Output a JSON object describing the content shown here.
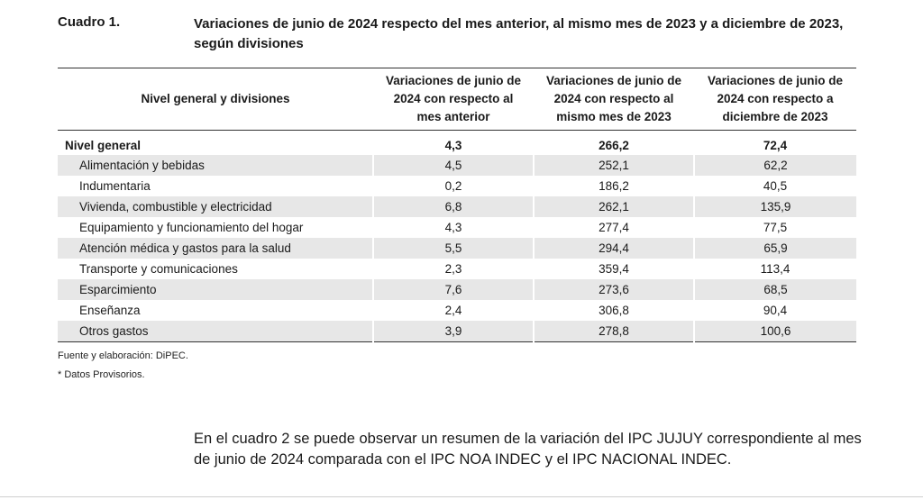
{
  "cuadro": {
    "label": "Cuadro 1.",
    "title": "Variaciones de junio de 2024 respecto del mes anterior, al mismo mes de 2023 y a diciembre de 2023, según divisiones"
  },
  "table": {
    "headers": [
      "Nivel general y divisiones",
      "Variaciones de junio de 2024 con respecto al mes anterior",
      "Variaciones de junio de 2024 con respecto al mismo mes de 2023",
      "Variaciones de junio de 2024 con respecto a diciembre de 2023"
    ],
    "rows": [
      [
        "Nivel general",
        "4,3",
        "266,2",
        "72,4"
      ],
      [
        "Alimentación y bebidas",
        "4,5",
        "252,1",
        "62,2"
      ],
      [
        "Indumentaria",
        "0,2",
        "186,2",
        "40,5"
      ],
      [
        "Vivienda, combustible y electricidad",
        "6,8",
        "262,1",
        "135,9"
      ],
      [
        "Equipamiento y funcionamiento del hogar",
        "4,3",
        "277,4",
        "77,5"
      ],
      [
        "Atención médica y gastos para la salud",
        "5,5",
        "294,4",
        "65,9"
      ],
      [
        "Transporte y comunicaciones",
        "2,3",
        "359,4",
        "113,4"
      ],
      [
        "Esparcimiento",
        "7,6",
        "273,6",
        "68,5"
      ],
      [
        "Enseñanza",
        "2,4",
        "306,8",
        "90,4"
      ],
      [
        "Otros gastos",
        "3,9",
        "278,8",
        "100,6"
      ]
    ]
  },
  "footnotes": {
    "source": "Fuente y elaboración: DiPEC.",
    "provisional": "* Datos Provisorios."
  },
  "paragraph": "En el cuadro 2 se puede observar un resumen de la variación del IPC JUJUY correspondiente al mes de junio de 2024 comparada con el IPC NOA INDEC y el IPC NACIONAL INDEC."
}
